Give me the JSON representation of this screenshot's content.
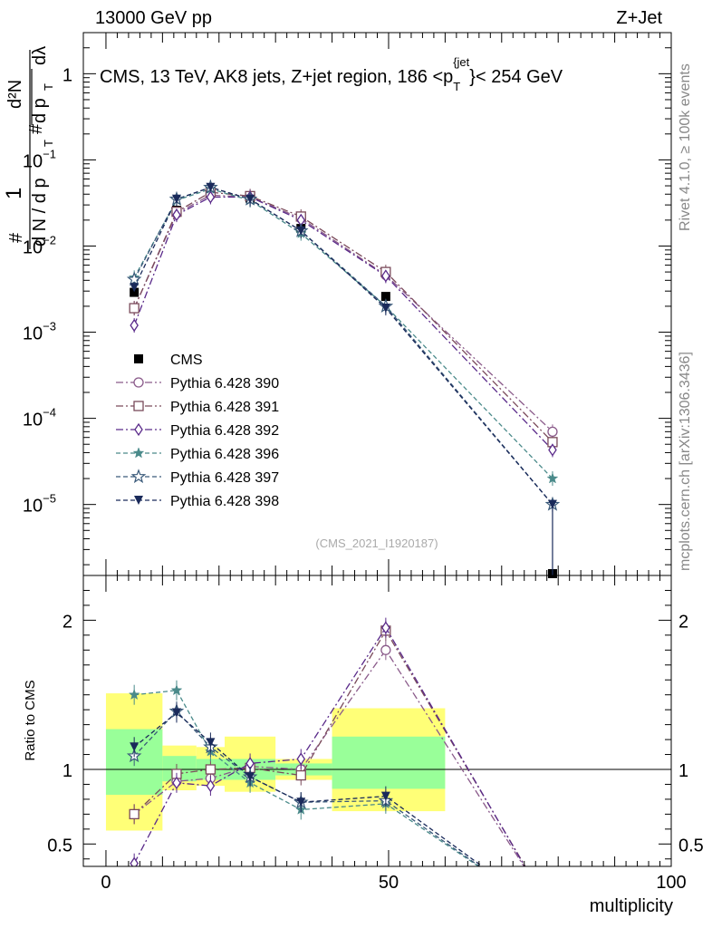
{
  "header": {
    "energy": "13000 GeV pp",
    "process": "Z+Jet"
  },
  "side_labels": {
    "rivet": "Rivet 4.1.0, ≥ 100k events",
    "mcplots": "mcplots.cern.ch [arXiv:1306.3436]"
  },
  "analysis_id": "(CMS_2021_I1920187)",
  "colors": {
    "data": "#000000",
    "s390": "#8a5a8a",
    "s391": "#7a4a5a",
    "s392": "#5a2a8a",
    "s396": "#4a8a8a",
    "s397": "#3a5a7a",
    "s398": "#1a2a5a",
    "band_inner": "#99ff99",
    "band_outer": "#ffff77"
  },
  "chart_data": [
    {
      "type": "scatter",
      "title": "CMS, 13 TeV, AK8 jets, Z+jet region, 186 <p_T^{jet}< 254 GeV",
      "title_parts": {
        "pre": "CMS, 13 TeV, AK8 jets, Z+jet region, 186 <p",
        "sub": "T",
        "sup": "{jet",
        "post": "}< 254 GeV"
      },
      "ylabel": "1/(dN/dp_T) d²N/(dp_T dλ)",
      "ylabel_parts": {
        "hash": "#",
        "one": "1",
        "dN": "d N / d p",
        "T": "T",
        "d2N": "d²N",
        "dp": "d p",
        "dl": "dλ"
      },
      "yscale": "log",
      "ylim": [
        1.5e-06,
        3.0
      ],
      "xlim": [
        -4,
        100
      ],
      "x": [
        5,
        12.5,
        18.5,
        25.5,
        34.5,
        49.5,
        79
      ],
      "yticks": [
        {
          "v": 1,
          "base": "1",
          "exp": ""
        },
        {
          "v": 0.1,
          "base": "10",
          "exp": "−1"
        },
        {
          "v": 0.01,
          "base": "10",
          "exp": "−2"
        },
        {
          "v": 0.001,
          "base": "10",
          "exp": "−3"
        },
        {
          "v": 0.0001,
          "base": "10",
          "exp": "−4"
        },
        {
          "v": 1e-05,
          "base": "10",
          "exp": "−5"
        }
      ],
      "series": [
        {
          "name": "CMS",
          "key": "data",
          "values": [
            0.0029,
            0.026,
            0.044,
            0.036,
            0.016,
            0.0026,
            1.3e-06
          ]
        },
        {
          "name": "Pythia 6.428 390",
          "key": "s390",
          "values": [
            0.0019,
            0.024,
            0.039,
            0.037,
            0.021,
            0.0046,
            7e-05
          ]
        },
        {
          "name": "Pythia 6.428 391",
          "key": "s391",
          "values": [
            0.0019,
            0.025,
            0.042,
            0.038,
            0.022,
            0.005,
            5.3e-05
          ]
        },
        {
          "name": "Pythia 6.428 392",
          "key": "s392",
          "values": [
            0.0012,
            0.023,
            0.037,
            0.037,
            0.02,
            0.0045,
            4.3e-05
          ]
        },
        {
          "name": "Pythia 6.428 396",
          "key": "s396",
          "values": [
            0.0043,
            0.034,
            0.046,
            0.034,
            0.014,
            0.002,
            2e-05
          ]
        },
        {
          "name": "Pythia 6.428 397",
          "key": "s397",
          "values": [
            0.0041,
            0.035,
            0.048,
            0.035,
            0.015,
            0.002,
            1e-05
          ]
        },
        {
          "name": "Pythia 6.428 398",
          "key": "s398",
          "values": [
            0.0033,
            0.035,
            0.048,
            0.035,
            0.015,
            0.0019,
            1e-05
          ]
        }
      ]
    },
    {
      "type": "line",
      "ylabel": "Ratio to CMS",
      "xlabel": "multiplicity",
      "ylim": [
        0.35,
        2.3
      ],
      "xlim": [
        -4,
        100
      ],
      "xticks": [
        0,
        50,
        100
      ],
      "yticks": [
        0.5,
        1,
        2
      ],
      "x": [
        5,
        12.5,
        18.5,
        25.5,
        34.5,
        49.5,
        79
      ],
      "bands": [
        {
          "x0": 0,
          "x1": 10,
          "inner": [
            0.83,
            1.27
          ],
          "outer": [
            0.59,
            1.51
          ]
        },
        {
          "x0": 10,
          "x1": 16,
          "inner": [
            0.92,
            1.09
          ],
          "outer": [
            0.86,
            1.16
          ]
        },
        {
          "x0": 16,
          "x1": 21,
          "inner": [
            0.93,
            1.07
          ],
          "outer": [
            0.89,
            1.15
          ]
        },
        {
          "x0": 21,
          "x1": 30,
          "inner": [
            0.93,
            1.07
          ],
          "outer": [
            0.85,
            1.22
          ]
        },
        {
          "x0": 30,
          "x1": 40,
          "inner": [
            0.96,
            1.04
          ],
          "outer": [
            0.93,
            1.07
          ]
        },
        {
          "x0": 40,
          "x1": 60,
          "inner": [
            0.87,
            1.22
          ],
          "outer": [
            0.72,
            1.41
          ]
        }
      ],
      "series": [
        {
          "name": "Pythia 6.428 390",
          "key": "s390",
          "values": [
            0.7,
            0.92,
            0.94,
            1.02,
            1.0,
            1.8,
            0.05
          ]
        },
        {
          "name": "Pythia 6.428 391",
          "key": "s391",
          "values": [
            0.7,
            0.97,
            1.0,
            1.01,
            0.96,
            1.93,
            0.04
          ]
        },
        {
          "name": "Pythia 6.428 392",
          "key": "s392",
          "values": [
            0.37,
            0.91,
            0.89,
            1.04,
            1.07,
            1.95,
            0.03
          ]
        },
        {
          "name": "Pythia 6.428 396",
          "key": "s396",
          "values": [
            1.5,
            1.53,
            1.12,
            0.91,
            0.73,
            0.77,
            0.015
          ]
        },
        {
          "name": "Pythia 6.428 397",
          "key": "s397",
          "values": [
            1.09,
            1.39,
            1.15,
            0.95,
            0.78,
            0.79,
            0.008
          ]
        },
        {
          "name": "Pythia 6.428 398",
          "key": "s398",
          "values": [
            1.15,
            1.38,
            1.18,
            0.95,
            0.78,
            0.82,
            0.008
          ]
        }
      ]
    }
  ]
}
